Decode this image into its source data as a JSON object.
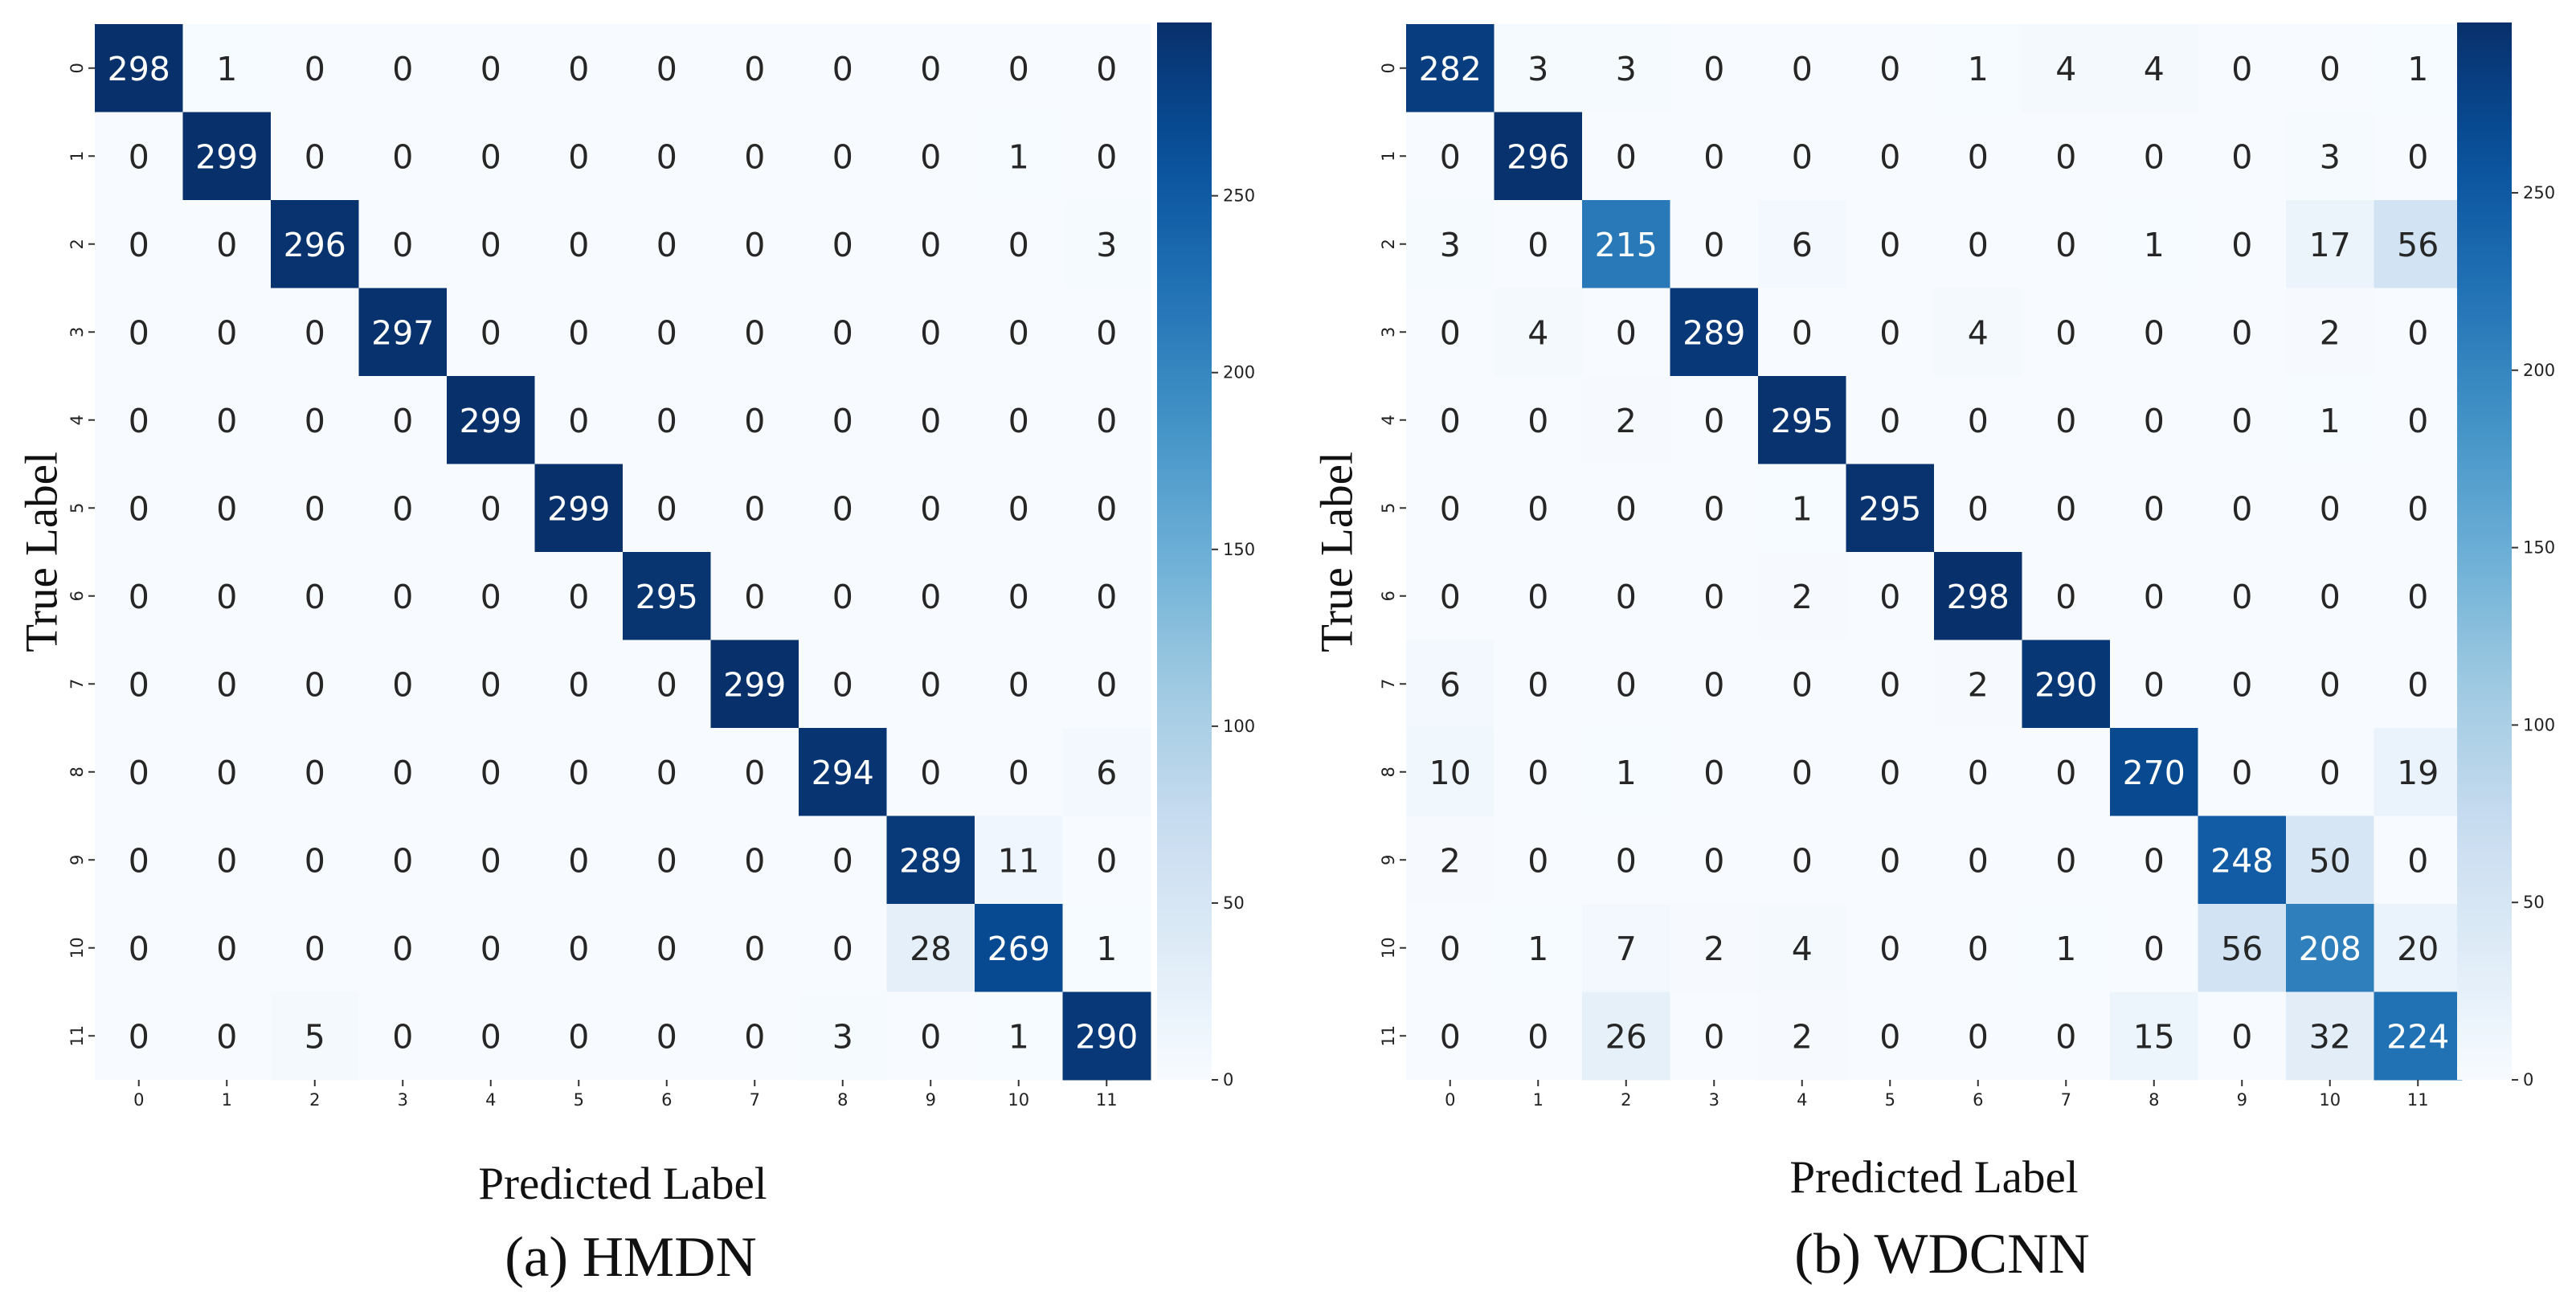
{
  "chart_data": [
    {
      "type": "heatmap",
      "caption": "(a) HMDN",
      "xlabel": "Predicted Label",
      "ylabel": "True Label",
      "x_ticks": [
        "0",
        "1",
        "2",
        "3",
        "4",
        "5",
        "6",
        "7",
        "8",
        "9",
        "10",
        "11"
      ],
      "y_ticks": [
        "0",
        "1",
        "2",
        "3",
        "4",
        "5",
        "6",
        "7",
        "8",
        "9",
        "10",
        "11"
      ],
      "colorbar": {
        "min": 0,
        "max": 299,
        "ticks": [
          0,
          50,
          100,
          150,
          200,
          250
        ],
        "colormap": "Blues"
      },
      "values": [
        [
          298,
          1,
          0,
          0,
          0,
          0,
          0,
          0,
          0,
          0,
          0,
          0
        ],
        [
          0,
          299,
          0,
          0,
          0,
          0,
          0,
          0,
          0,
          0,
          1,
          0
        ],
        [
          0,
          0,
          296,
          0,
          0,
          0,
          0,
          0,
          0,
          0,
          0,
          3
        ],
        [
          0,
          0,
          0,
          297,
          0,
          0,
          0,
          0,
          0,
          0,
          0,
          0
        ],
        [
          0,
          0,
          0,
          0,
          299,
          0,
          0,
          0,
          0,
          0,
          0,
          0
        ],
        [
          0,
          0,
          0,
          0,
          0,
          299,
          0,
          0,
          0,
          0,
          0,
          0
        ],
        [
          0,
          0,
          0,
          0,
          0,
          0,
          295,
          0,
          0,
          0,
          0,
          0
        ],
        [
          0,
          0,
          0,
          0,
          0,
          0,
          0,
          299,
          0,
          0,
          0,
          0
        ],
        [
          0,
          0,
          0,
          0,
          0,
          0,
          0,
          0,
          294,
          0,
          0,
          6
        ],
        [
          0,
          0,
          0,
          0,
          0,
          0,
          0,
          0,
          0,
          289,
          11,
          0
        ],
        [
          0,
          0,
          0,
          0,
          0,
          0,
          0,
          0,
          0,
          28,
          269,
          1
        ],
        [
          0,
          0,
          5,
          0,
          0,
          0,
          0,
          0,
          3,
          0,
          1,
          290
        ]
      ]
    },
    {
      "type": "heatmap",
      "caption": "(b) WDCNN",
      "xlabel": "Predicted Label",
      "ylabel": "True Label",
      "x_ticks": [
        "0",
        "1",
        "2",
        "3",
        "4",
        "5",
        "6",
        "7",
        "8",
        "9",
        "10",
        "11"
      ],
      "y_ticks": [
        "0",
        "1",
        "2",
        "3",
        "4",
        "5",
        "6",
        "7",
        "8",
        "9",
        "10",
        "11"
      ],
      "colorbar": {
        "min": 0,
        "max": 298,
        "ticks": [
          0,
          50,
          100,
          150,
          200,
          250
        ],
        "colormap": "Blues"
      },
      "values": [
        [
          282,
          3,
          3,
          0,
          0,
          0,
          1,
          4,
          4,
          0,
          0,
          1
        ],
        [
          0,
          296,
          0,
          0,
          0,
          0,
          0,
          0,
          0,
          0,
          3,
          0
        ],
        [
          3,
          0,
          215,
          0,
          6,
          0,
          0,
          0,
          1,
          0,
          17,
          56
        ],
        [
          0,
          4,
          0,
          289,
          0,
          0,
          4,
          0,
          0,
          0,
          2,
          0
        ],
        [
          0,
          0,
          2,
          0,
          295,
          0,
          0,
          0,
          0,
          0,
          1,
          0
        ],
        [
          0,
          0,
          0,
          0,
          1,
          295,
          0,
          0,
          0,
          0,
          0,
          0
        ],
        [
          0,
          0,
          0,
          0,
          2,
          0,
          298,
          0,
          0,
          0,
          0,
          0
        ],
        [
          6,
          0,
          0,
          0,
          0,
          0,
          2,
          290,
          0,
          0,
          0,
          0
        ],
        [
          10,
          0,
          1,
          0,
          0,
          0,
          0,
          0,
          270,
          0,
          0,
          19
        ],
        [
          2,
          0,
          0,
          0,
          0,
          0,
          0,
          0,
          0,
          248,
          50,
          0
        ],
        [
          0,
          1,
          7,
          2,
          4,
          0,
          0,
          1,
          0,
          56,
          208,
          20
        ],
        [
          0,
          0,
          26,
          0,
          2,
          0,
          0,
          0,
          15,
          0,
          32,
          224
        ]
      ]
    }
  ]
}
